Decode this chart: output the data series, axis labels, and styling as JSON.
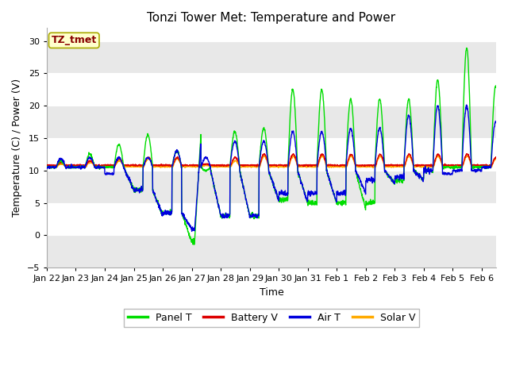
{
  "title": "Tonzi Tower Met: Temperature and Power",
  "xlabel": "Time",
  "ylabel": "Temperature (C) / Power (V)",
  "xlim_days": [
    0,
    15.5
  ],
  "ylim": [
    -5,
    32
  ],
  "yticks": [
    -5,
    0,
    5,
    10,
    15,
    20,
    25,
    30
  ],
  "xtick_labels": [
    "Jan 22",
    "Jan 23",
    "Jan 24",
    "Jan 25",
    "Jan 26",
    "Jan 27",
    "Jan 28",
    "Jan 29",
    "Jan 30",
    "Jan 31",
    "Feb 1",
    "Feb 2",
    "Feb 3",
    "Feb 4",
    "Feb 5",
    "Feb 6"
  ],
  "xtick_positions": [
    0,
    1,
    2,
    3,
    4,
    5,
    6,
    7,
    8,
    9,
    10,
    11,
    12,
    13,
    14,
    15
  ],
  "colors": {
    "panel_t": "#00dd00",
    "battery_v": "#dd0000",
    "air_t": "#0000dd",
    "solar_v": "#ffaa00"
  },
  "legend_labels": [
    "Panel T",
    "Battery V",
    "Air T",
    "Solar V"
  ],
  "annotation_text": "TZ_tmet",
  "annotation_box_facecolor": "#ffffcc",
  "annotation_text_color": "#880000",
  "annotation_edge_color": "#aaaa00",
  "fig_facecolor": "#ffffff",
  "plot_facecolor": "#ffffff",
  "band_color_dark": "#e8e8e8",
  "band_color_light": "#f0f0f0",
  "linewidth": 1.0,
  "title_fontsize": 11,
  "axis_label_fontsize": 9,
  "tick_fontsize": 8,
  "legend_fontsize": 9
}
